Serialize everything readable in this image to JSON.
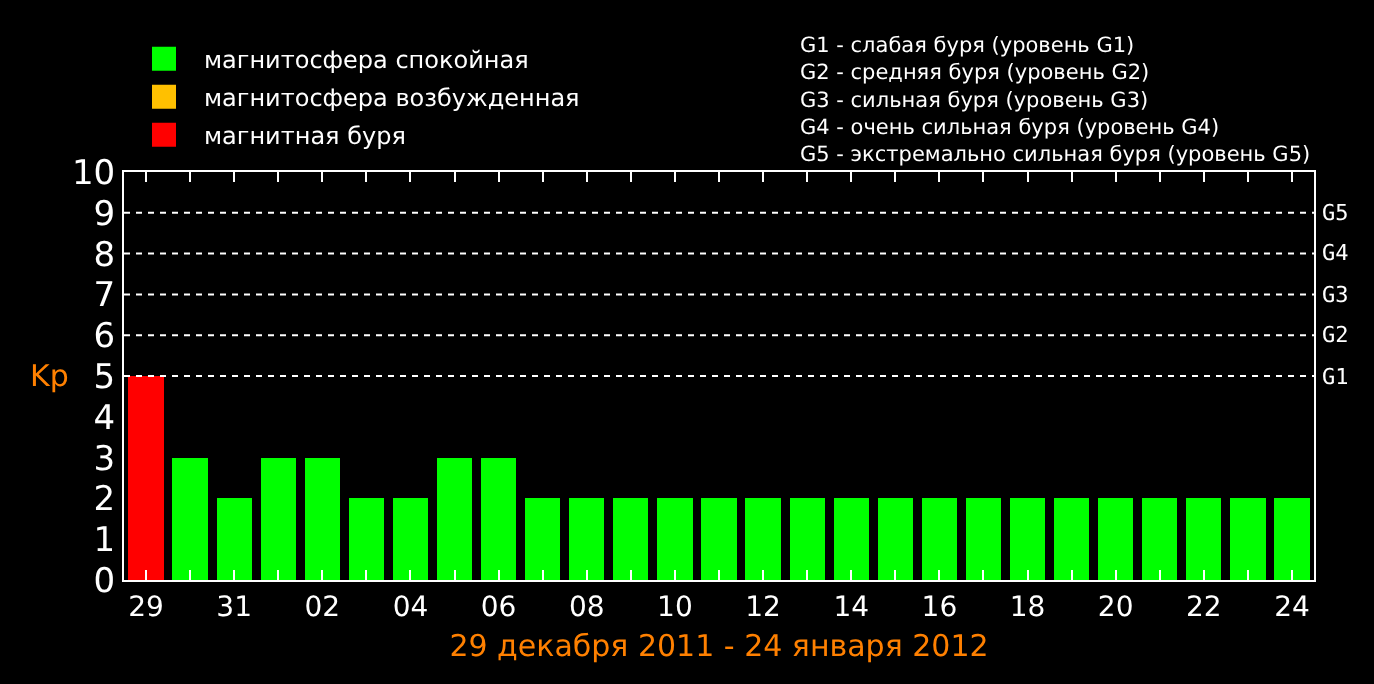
{
  "chart_data": {
    "type": "bar",
    "stacked": true,
    "categories": [
      "29",
      null,
      "31",
      null,
      "02",
      null,
      "04",
      null,
      "06",
      null,
      "08",
      null,
      "10",
      null,
      "12",
      null,
      "14",
      null,
      "16",
      null,
      "18",
      null,
      "20",
      null,
      "22",
      null,
      "24"
    ],
    "series": [
      {
        "name": "магнитосфера спокойная",
        "color": "#00ff00",
        "values": [
          null,
          3,
          2,
          3,
          3,
          2,
          2,
          3,
          3,
          2,
          2,
          2,
          2,
          2,
          2,
          2,
          2,
          2,
          2,
          2,
          2,
          2,
          2,
          2,
          2,
          2,
          2
        ]
      },
      {
        "name": "магнитосфера возбужденная",
        "color": "#ffc000",
        "values": [
          null,
          null,
          null,
          null,
          null,
          null,
          null,
          null,
          null,
          null,
          null,
          null,
          null,
          null,
          null,
          null,
          null,
          null,
          null,
          null,
          null,
          null,
          null,
          null,
          null,
          null,
          null
        ]
      },
      {
        "name": "магнитная буря",
        "color": "#ff0000",
        "values": [
          5,
          null,
          null,
          null,
          null,
          null,
          null,
          null,
          null,
          null,
          null,
          null,
          null,
          null,
          null,
          null,
          null,
          null,
          null,
          null,
          null,
          null,
          null,
          null,
          null,
          null,
          null
        ]
      }
    ],
    "xlabel": "29 декабря 2011 - 24 января 2012",
    "ylabel": "Kp",
    "ylim": [
      0,
      10
    ],
    "yticks": [
      0,
      1,
      2,
      3,
      4,
      5,
      6,
      7,
      8,
      9,
      10
    ],
    "ref_lines": [
      {
        "axis": "y",
        "value": 5,
        "label": "G1",
        "color": "#ffffff",
        "line_style": "dotted"
      },
      {
        "axis": "y",
        "value": 6,
        "label": "G2",
        "color": "#ffffff",
        "line_style": "dotted"
      },
      {
        "axis": "y",
        "value": 7,
        "label": "G3",
        "color": "#ffffff",
        "line_style": "dotted"
      },
      {
        "axis": "y",
        "value": 8,
        "label": "G4",
        "color": "#ffffff",
        "line_style": "dotted"
      },
      {
        "axis": "y",
        "value": 9,
        "label": "G5",
        "color": "#ffffff",
        "line_style": "dotted"
      }
    ],
    "annotations": [
      "G1 - слабая буря (уровень G1)",
      "G2 - средняя буря (уровень G2)",
      "G3 - сильная буря (уровень G3)",
      "G4 - очень сильная буря (уровень G4)",
      "G5 - экстремально сильная буря (уровень G5)"
    ],
    "legend": "top left",
    "grid": false
  }
}
